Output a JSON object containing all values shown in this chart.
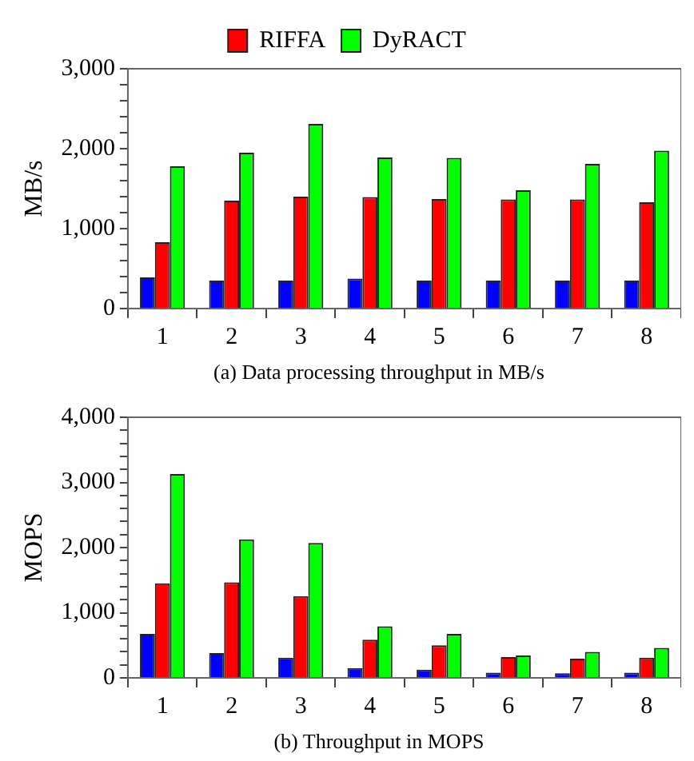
{
  "chart_data": [
    {
      "type": "bar",
      "ylabel": "MB/s",
      "annotations": [
        "(a) Data processing throughput in MB/s"
      ],
      "categories": [
        "1",
        "2",
        "3",
        "4",
        "5",
        "6",
        "7",
        "8"
      ],
      "ylim": [
        0,
        3000
      ],
      "yticks": [
        0,
        {
          "value": 200,
          "label": null
        },
        {
          "value": 400,
          "label": null
        },
        {
          "value": 600,
          "label": null
        },
        {
          "value": 800,
          "label": null
        },
        {
          "value": 1000,
          "label": "1,000"
        },
        {
          "value": 1200,
          "label": null
        },
        {
          "value": 1400,
          "label": null
        },
        {
          "value": 1600,
          "label": null
        },
        {
          "value": 1800,
          "label": null
        },
        {
          "value": 2000,
          "label": "2,000"
        },
        {
          "value": 2200,
          "label": null
        },
        {
          "value": 2400,
          "label": null
        },
        {
          "value": 2600,
          "label": null
        },
        {
          "value": 2800,
          "label": null
        },
        {
          "value": 3000,
          "label": "3,000"
        }
      ],
      "grid": false,
      "legend": "top",
      "series": [
        {
          "color": "#0000ff",
          "values": [
            390,
            350,
            350,
            375,
            350,
            350,
            350,
            350
          ]
        },
        {
          "name": "RIFFA",
          "color": "#ff0000",
          "values": [
            830,
            1350,
            1400,
            1395,
            1370,
            1365,
            1365,
            1330
          ]
        },
        {
          "name": "DyRACT",
          "color": "#00ff00",
          "values": [
            1780,
            1950,
            2310,
            1890,
            1885,
            1480,
            1810,
            1975
          ]
        }
      ]
    },
    {
      "type": "bar",
      "ylabel": "MOPS",
      "annotations": [
        "(b) Throughput in MOPS"
      ],
      "categories": [
        "1",
        "2",
        "3",
        "4",
        "5",
        "6",
        "7",
        "8"
      ],
      "ylim": [
        0,
        4000
      ],
      "yticks": [
        0,
        {
          "value": 200,
          "label": null
        },
        {
          "value": 400,
          "label": null
        },
        {
          "value": 600,
          "label": null
        },
        {
          "value": 800,
          "label": null
        },
        {
          "value": 1000,
          "label": "1,000"
        },
        {
          "value": 1200,
          "label": null
        },
        {
          "value": 1400,
          "label": null
        },
        {
          "value": 1600,
          "label": null
        },
        {
          "value": 1800,
          "label": null
        },
        {
          "value": 2000,
          "label": "2,000"
        },
        {
          "value": 2200,
          "label": null
        },
        {
          "value": 2400,
          "label": null
        },
        {
          "value": 2600,
          "label": null
        },
        {
          "value": 2800,
          "label": null
        },
        {
          "value": 3000,
          "label": "3,000"
        },
        {
          "value": 3200,
          "label": null
        },
        {
          "value": 3400,
          "label": null
        },
        {
          "value": 3600,
          "label": null
        },
        {
          "value": 3800,
          "label": null
        },
        {
          "value": 4000,
          "label": "4,000"
        }
      ],
      "grid": false,
      "legend": false,
      "series": [
        {
          "color": "#0000ff",
          "values": [
            675,
            380,
            310,
            150,
            125,
            80,
            70,
            80
          ]
        },
        {
          "color": "#ff0000",
          "values": [
            1450,
            1465,
            1255,
            585,
            500,
            320,
            295,
            310
          ]
        },
        {
          "color": "#00ff00",
          "values": [
            3130,
            2125,
            2070,
            790,
            675,
            345,
            400,
            460
          ]
        }
      ]
    }
  ]
}
